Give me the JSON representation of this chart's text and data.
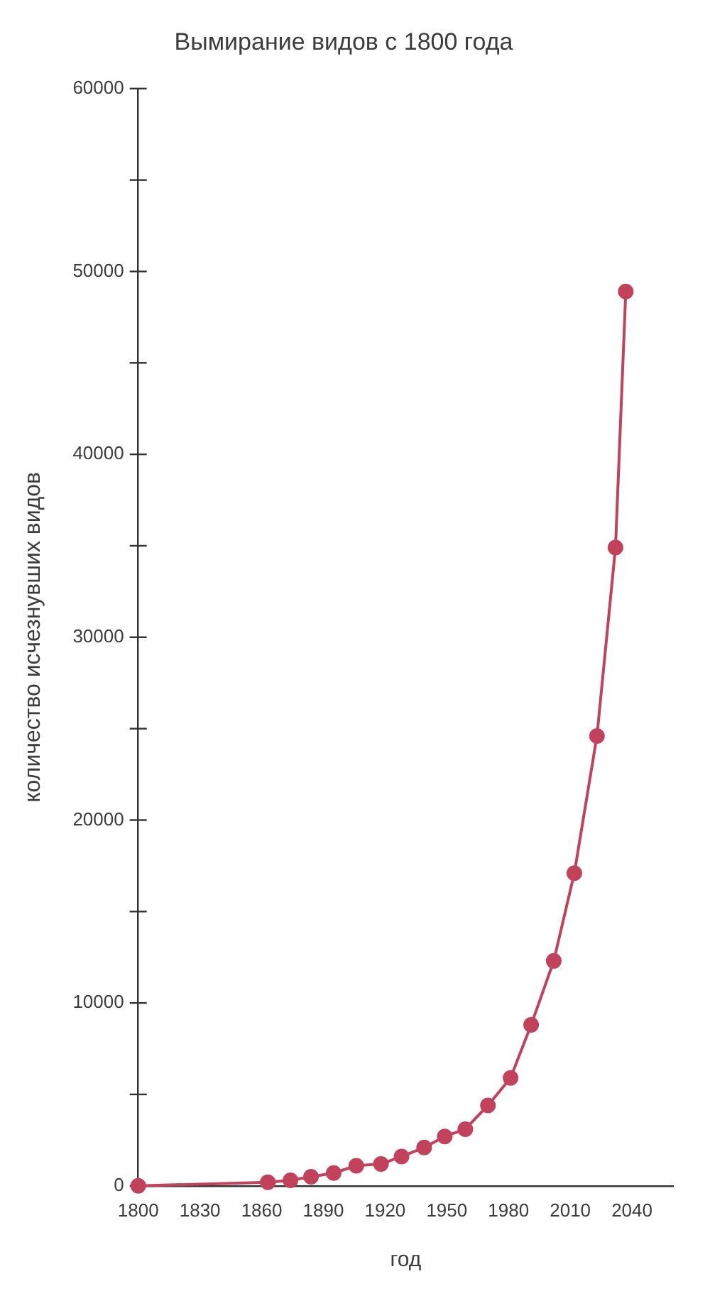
{
  "chart_data": {
    "type": "line",
    "title": "Вымирание видов с 1800 года",
    "xlabel": "год",
    "ylabel": "количество исчезнувших видов",
    "xlim": [
      1800,
      2060
    ],
    "xticks": [
      1800,
      1830,
      1860,
      1890,
      1920,
      1950,
      1980,
      2010,
      2040
    ],
    "ylim": [
      0,
      60000
    ],
    "yticks": [
      0,
      {
        "value": 5000,
        "label": null
      },
      10000,
      {
        "value": 15000,
        "label": null
      },
      20000,
      {
        "value": 25000,
        "label": null
      },
      30000,
      {
        "value": 35000,
        "label": null
      },
      40000,
      {
        "value": 45000,
        "label": null
      },
      50000,
      {
        "value": 55000,
        "label": null
      },
      60000
    ],
    "marker": "circle",
    "series": [
      {
        "color": "#c2415b",
        "x": [
          1800,
          1863,
          1874,
          1884,
          1895,
          1906,
          1918,
          1928,
          1939,
          1949,
          1959,
          1970,
          1981,
          1991,
          2002,
          2012,
          2023,
          2032,
          2037
        ],
        "values": [
          0,
          200,
          300,
          500,
          700,
          1100,
          1200,
          1600,
          2100,
          2700,
          3100,
          4400,
          5900,
          8800,
          12300,
          17100,
          24600,
          34900,
          48900
        ]
      }
    ]
  }
}
